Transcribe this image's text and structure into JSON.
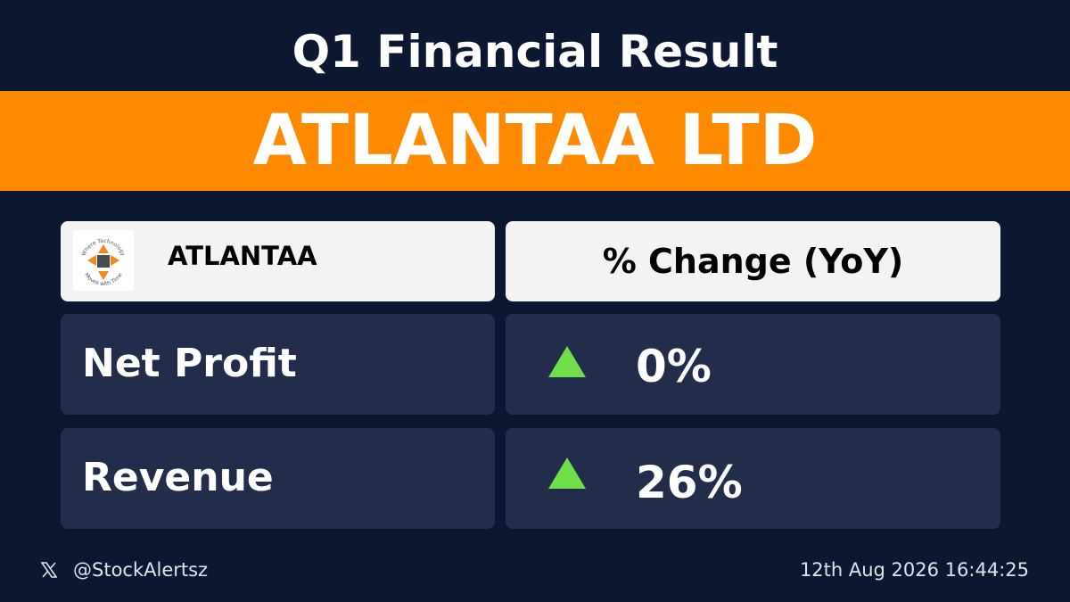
{
  "header": {
    "title": "Q1 Financial Result",
    "company": "ATLANTAA LTD"
  },
  "logo": {
    "top_text": "Where Technology",
    "bottom_text": "Moves with Time"
  },
  "table": {
    "header": [
      "ATLANTAA",
      "% Change (YoY)"
    ],
    "rows": [
      [
        "Net Profit",
        "0%"
      ],
      [
        "Revenue",
        "26%"
      ]
    ]
  },
  "footer": {
    "handle": "@StockAlertsz",
    "timestamp": "12th Aug 2026 16:44:25"
  }
}
